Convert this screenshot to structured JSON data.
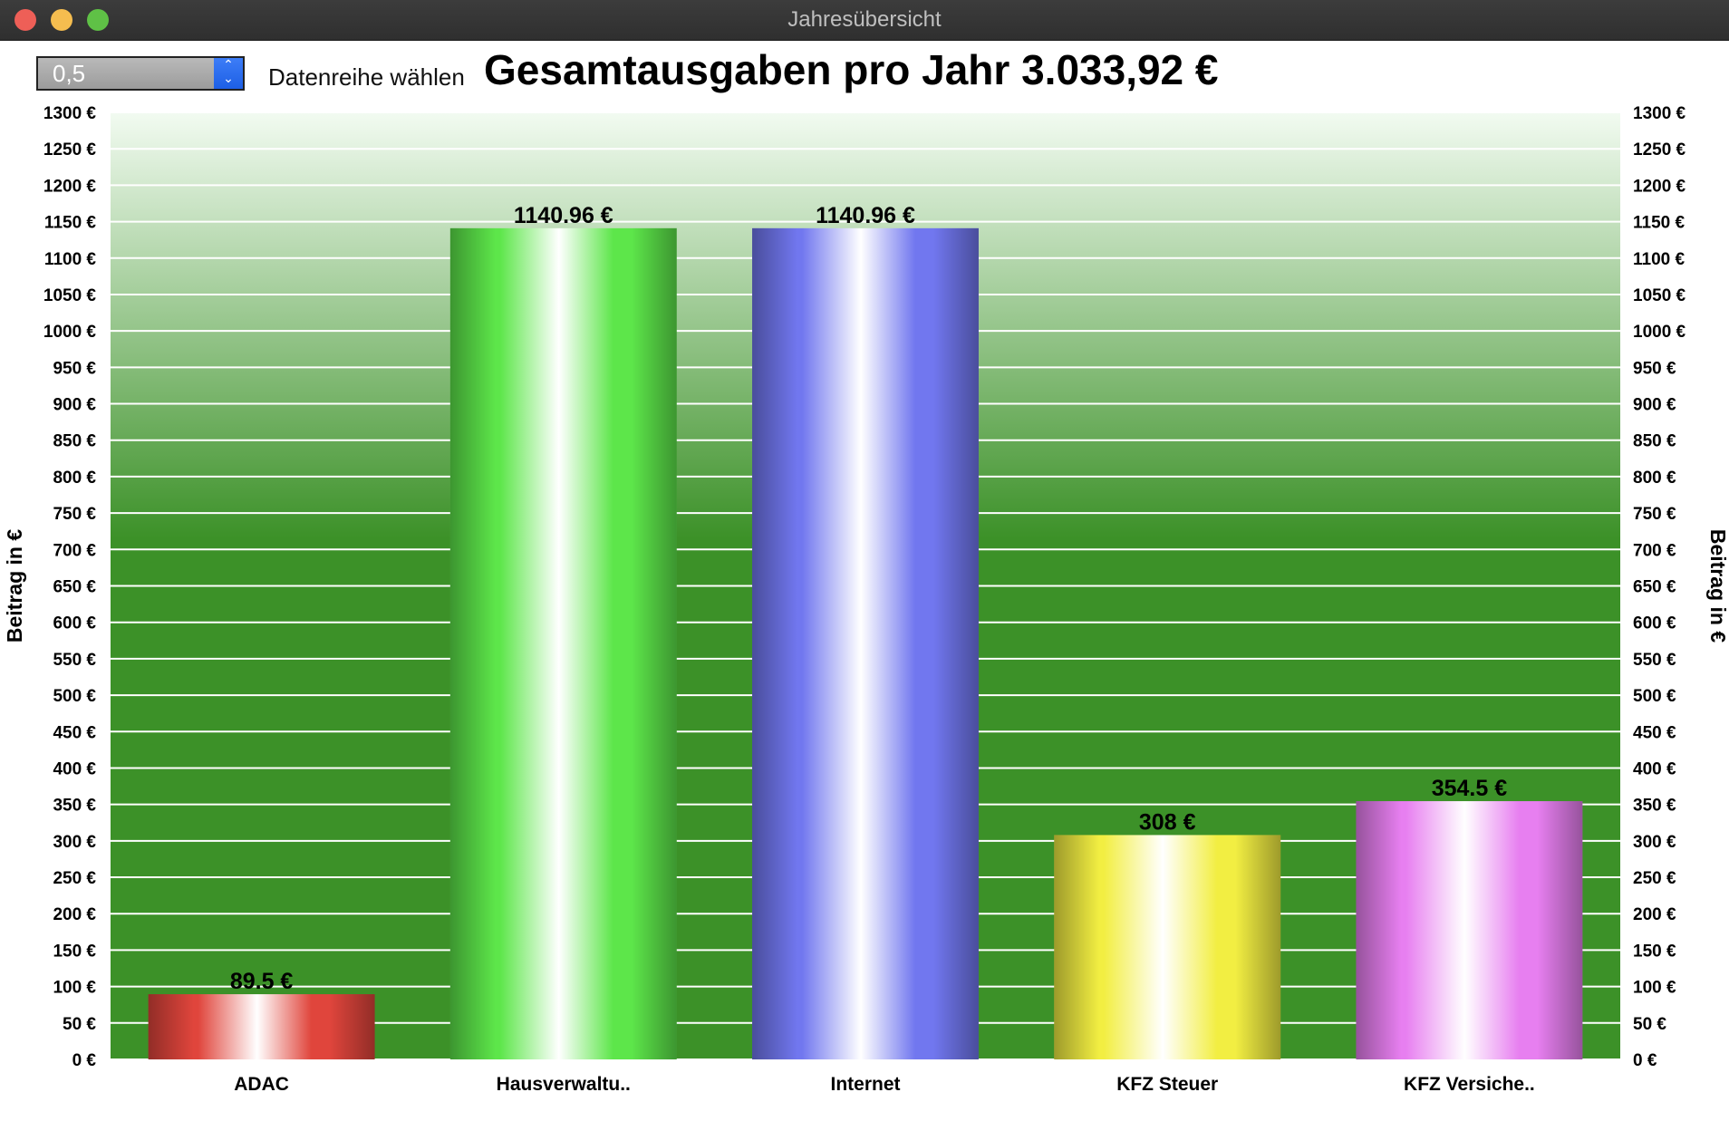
{
  "window": {
    "title": "Jahresübersicht"
  },
  "toolbar": {
    "stepper_value": "0,5",
    "select_label": "Datenreihe wählen",
    "summary_title": "Gesamtausgaben pro Jahr 3.033,92 €"
  },
  "chart_data": {
    "type": "bar",
    "title": "Gesamtausgaben pro Jahr 3.033,92 €",
    "xlabel": "",
    "ylabel": "Beitrag in €",
    "y2label": "Beitrag in €",
    "ylim": [
      0,
      1300
    ],
    "ytick_step": 50,
    "ytick_suffix": " €",
    "grid": true,
    "categories": [
      "ADAC",
      "Hausverwaltu..",
      "Internet",
      "KFZ Steuer",
      "KFZ Versiche.."
    ],
    "values": [
      89.5,
      1140.96,
      1140.96,
      308,
      354.5
    ],
    "value_labels": [
      "89.5 €",
      "1140.96 €",
      "1140.96 €",
      "308 €",
      "354.5 €"
    ],
    "bar_colors": [
      "#e0453c",
      "#5de64a",
      "#7177ef",
      "#f2ee42",
      "#e77ff0"
    ],
    "plot_background": [
      "#f2fbf1",
      "#3c9128"
    ],
    "gridline_color": "#ffffff"
  }
}
